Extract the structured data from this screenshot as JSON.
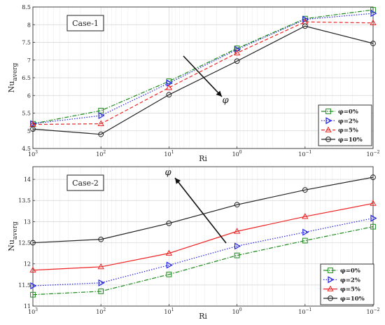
{
  "chart_data": [
    {
      "type": "line",
      "panel_label": "Case-1",
      "xlabel": "Ri",
      "ylabel_main": "Nu",
      "ylabel_sub": "averg",
      "x_ticks": [
        {
          "base": "10",
          "exp": "3"
        },
        {
          "base": "10",
          "exp": "2"
        },
        {
          "base": "10",
          "exp": "1"
        },
        {
          "base": "10",
          "exp": "0"
        },
        {
          "base": "10",
          "exp": "−1"
        },
        {
          "base": "10",
          "exp": "−2"
        }
      ],
      "x": [
        1000,
        100,
        10,
        1,
        0.1,
        0.01
      ],
      "x_scale": "log-reversed",
      "xlim": [
        1000,
        0.01
      ],
      "ylim": [
        4.5,
        8.5
      ],
      "y_ticks": [
        "4.5",
        "5",
        "5.5",
        "6",
        "6.5",
        "7",
        "7.5",
        "8",
        "8.5"
      ],
      "grid": true,
      "legend_position": "bottom-right",
      "arrow_label": "φ",
      "series": [
        {
          "name": "φ=0%",
          "color": "#1a8a1a",
          "dash": "6 2 1.5 2",
          "marker": "square",
          "values": [
            5.2,
            5.57,
            6.4,
            7.33,
            8.17,
            8.42
          ]
        },
        {
          "name": "φ=2%",
          "color": "#1f1fe6",
          "dash": "1.5 2",
          "marker": "triangle-right",
          "values": [
            5.2,
            5.43,
            6.35,
            7.3,
            8.15,
            8.32
          ]
        },
        {
          "name": "φ=5%",
          "color": "#ee2222",
          "dash": "5 3",
          "marker": "triangle-up",
          "values": [
            5.18,
            5.2,
            6.22,
            7.2,
            8.08,
            8.05
          ]
        },
        {
          "name": "φ=10%",
          "color": "#222222",
          "dash": "",
          "marker": "circle",
          "values": [
            5.05,
            4.9,
            6.02,
            6.97,
            7.96,
            7.47
          ]
        }
      ]
    },
    {
      "type": "line",
      "panel_label": "Case-2",
      "xlabel": "Ri",
      "ylabel_main": "Nu",
      "ylabel_sub": "averg",
      "x_ticks": [
        {
          "base": "10",
          "exp": "3"
        },
        {
          "base": "10",
          "exp": "2"
        },
        {
          "base": "10",
          "exp": "1"
        },
        {
          "base": "10",
          "exp": "0"
        },
        {
          "base": "10",
          "exp": "−1"
        },
        {
          "base": "10",
          "exp": "−2"
        }
      ],
      "x": [
        1000,
        100,
        10,
        1,
        0.1,
        0.01
      ],
      "x_scale": "log-reversed",
      "xlim": [
        1000,
        0.01
      ],
      "ylim": [
        11,
        14.3
      ],
      "y_ticks": [
        "11",
        "11.5",
        "12",
        "12.5",
        "13",
        "13.5",
        "14"
      ],
      "grid": true,
      "legend_position": "bottom-right",
      "arrow_label": "φ",
      "series": [
        {
          "name": "φ=0%",
          "color": "#1a8a1a",
          "dash": "6 2 1.5 2",
          "marker": "square",
          "values": [
            11.27,
            11.35,
            11.75,
            12.2,
            12.55,
            12.88
          ]
        },
        {
          "name": "φ=2%",
          "color": "#1f1fe6",
          "dash": "1.5 2",
          "marker": "triangle-right",
          "values": [
            11.48,
            11.55,
            11.97,
            12.42,
            12.75,
            13.08
          ]
        },
        {
          "name": "φ=5%",
          "color": "#ee2222",
          "dash": "",
          "marker": "triangle-up",
          "values": [
            11.85,
            11.93,
            12.25,
            12.77,
            13.12,
            13.43
          ]
        },
        {
          "name": "φ=10%",
          "color": "#222222",
          "dash": "",
          "marker": "circle",
          "values": [
            12.5,
            12.58,
            12.96,
            13.4,
            13.75,
            14.05
          ]
        }
      ]
    }
  ]
}
